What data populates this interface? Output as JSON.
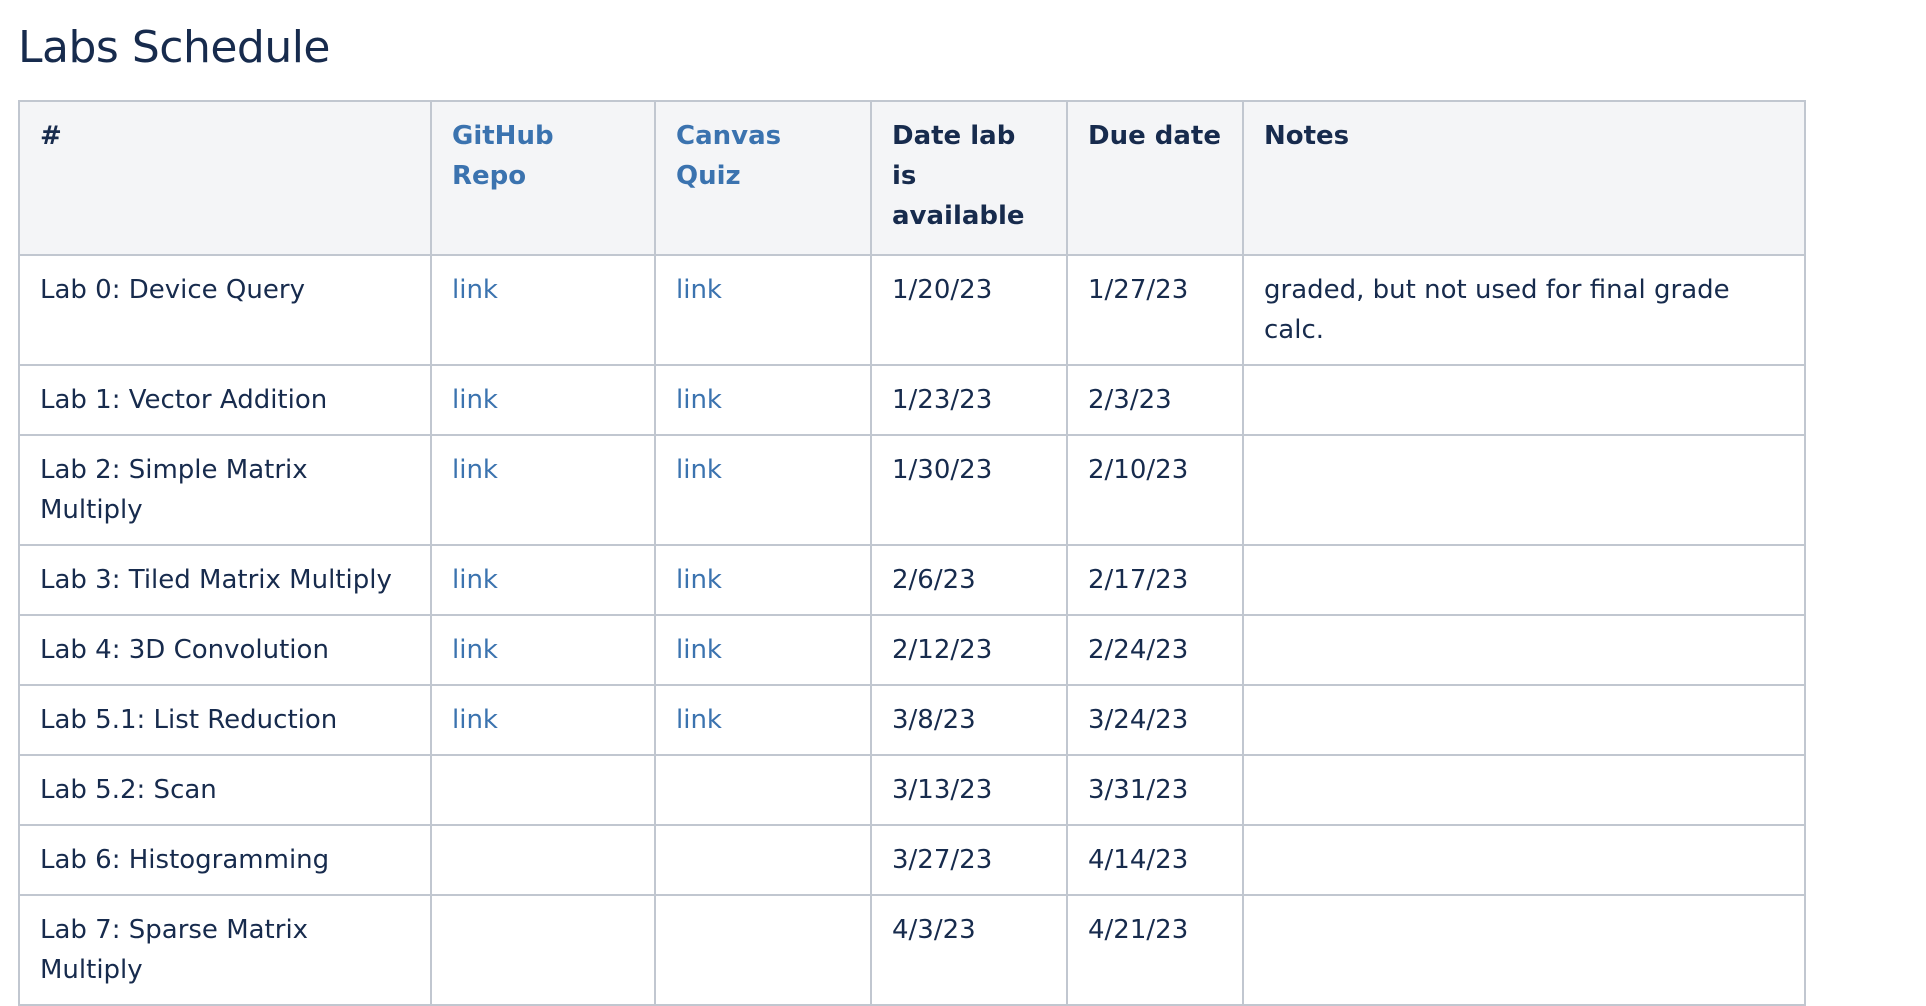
{
  "page": {
    "title": "Labs Schedule"
  },
  "table": {
    "headers": {
      "num": "#",
      "repo": "GitHub Repo",
      "quiz": "Canvas Quiz",
      "available": "Date lab is available",
      "due": "Due date",
      "notes": "Notes"
    },
    "rows": [
      {
        "name": "Lab 0: Device Query",
        "repo": "link",
        "quiz": "link",
        "available": "1/20/23",
        "due": "1/27/23",
        "notes": "graded, but not used for final grade calc."
      },
      {
        "name": "Lab 1: Vector Addition",
        "repo": "link",
        "quiz": "link",
        "available": "1/23/23",
        "due": "2/3/23",
        "notes": ""
      },
      {
        "name": "Lab 2: Simple Matrix Multiply",
        "repo": "link",
        "quiz": "link",
        "available": "1/30/23",
        "due": "2/10/23",
        "notes": ""
      },
      {
        "name": "Lab 3: Tiled Matrix Multiply",
        "repo": "link",
        "quiz": "link",
        "available": "2/6/23",
        "due": "2/17/23",
        "notes": ""
      },
      {
        "name": "Lab 4: 3D Convolution",
        "repo": "link",
        "quiz": "link",
        "available": "2/12/23",
        "due": "2/24/23",
        "notes": ""
      },
      {
        "name": "Lab 5.1: List Reduction",
        "repo": "link",
        "quiz": "link",
        "available": "3/8/23",
        "due": "3/24/23",
        "notes": ""
      },
      {
        "name": "Lab 5.2: Scan",
        "repo": "",
        "quiz": "",
        "available": "3/13/23",
        "due": "3/31/23",
        "notes": ""
      },
      {
        "name": "Lab 6: Histogramming",
        "repo": "",
        "quiz": "",
        "available": "3/27/23",
        "due": "4/14/23",
        "notes": ""
      },
      {
        "name": "Lab 7: Sparse Matrix Multiply",
        "repo": "",
        "quiz": "",
        "available": "4/3/23",
        "due": "4/21/23",
        "notes": ""
      }
    ]
  },
  "colors": {
    "heading_text": "#172b4d",
    "link": "#3b73af",
    "header_bg": "#f4f5f7",
    "border": "#c1c7d0"
  }
}
